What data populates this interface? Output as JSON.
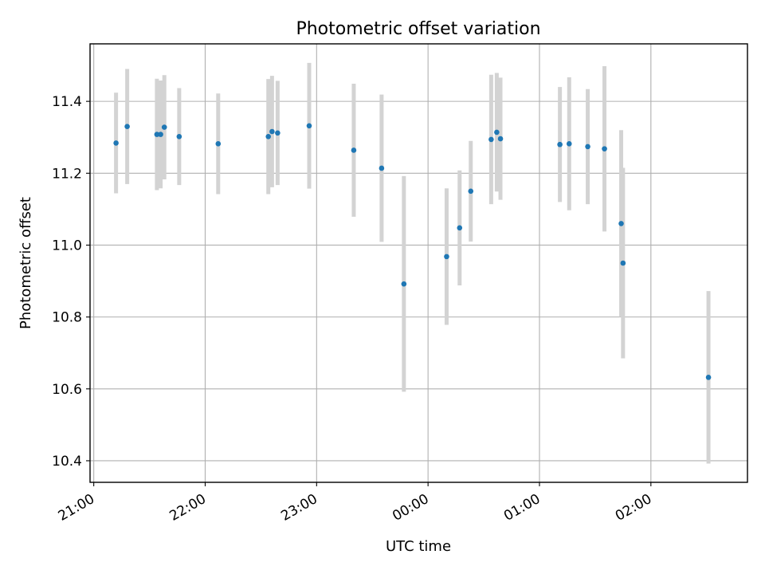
{
  "chart_data": {
    "type": "scatter",
    "title": "Photometric offset variation",
    "xlabel": "UTC time",
    "ylabel": "Photometric offset",
    "x_ticks": [
      "21:00",
      "22:00",
      "23:00",
      "00:00",
      "01:00",
      "02:00"
    ],
    "x_tick_times": [
      "21:00",
      "22:00",
      "23:00",
      "24:00",
      "25:00",
      "26:00"
    ],
    "y_ticks": [
      10.4,
      10.6,
      10.8,
      11.0,
      11.2,
      11.4
    ],
    "y_tick_labels": [
      "10.4",
      "10.6",
      "10.8",
      "11.0",
      "11.2",
      "11.4"
    ],
    "xlim": [
      "20:58",
      "26:52"
    ],
    "ylim": [
      10.34,
      11.56
    ],
    "grid": true,
    "colors": {
      "marker": "#1f77b4",
      "errorbar": "#d3d3d3",
      "grid": "#b0b0b0"
    },
    "points": [
      {
        "x": "21:12",
        "y": 11.284,
        "err": 0.14
      },
      {
        "x": "21:18",
        "y": 11.33,
        "err": 0.16
      },
      {
        "x": "21:34",
        "y": 11.308,
        "err": 0.155
      },
      {
        "x": "21:36",
        "y": 11.308,
        "err": 0.15
      },
      {
        "x": "21:38",
        "y": 11.328,
        "err": 0.145
      },
      {
        "x": "21:46",
        "y": 11.302,
        "err": 0.135
      },
      {
        "x": "22:07",
        "y": 11.282,
        "err": 0.14
      },
      {
        "x": "22:34",
        "y": 11.302,
        "err": 0.16
      },
      {
        "x": "22:36",
        "y": 11.316,
        "err": 0.155
      },
      {
        "x": "22:39",
        "y": 11.312,
        "err": 0.145
      },
      {
        "x": "22:56",
        "y": 11.332,
        "err": 0.175
      },
      {
        "x": "23:20",
        "y": 11.264,
        "err": 0.185
      },
      {
        "x": "23:35",
        "y": 11.214,
        "err": 0.205
      },
      {
        "x": "23:47",
        "y": 10.892,
        "err": 0.3
      },
      {
        "x": "24:10",
        "y": 10.968,
        "err": 0.19
      },
      {
        "x": "24:17",
        "y": 11.048,
        "err": 0.16
      },
      {
        "x": "24:23",
        "y": 11.15,
        "err": 0.14
      },
      {
        "x": "24:34",
        "y": 11.294,
        "err": 0.18
      },
      {
        "x": "24:37",
        "y": 11.314,
        "err": 0.165
      },
      {
        "x": "24:39",
        "y": 11.296,
        "err": 0.17
      },
      {
        "x": "25:11",
        "y": 11.28,
        "err": 0.16
      },
      {
        "x": "25:16",
        "y": 11.282,
        "err": 0.185
      },
      {
        "x": "25:26",
        "y": 11.274,
        "err": 0.16
      },
      {
        "x": "25:35",
        "y": 11.268,
        "err": 0.23
      },
      {
        "x": "25:44",
        "y": 11.06,
        "err": 0.26
      },
      {
        "x": "25:45",
        "y": 10.95,
        "err": 0.265
      },
      {
        "x": "26:31",
        "y": 10.632,
        "err": 0.24
      }
    ]
  }
}
